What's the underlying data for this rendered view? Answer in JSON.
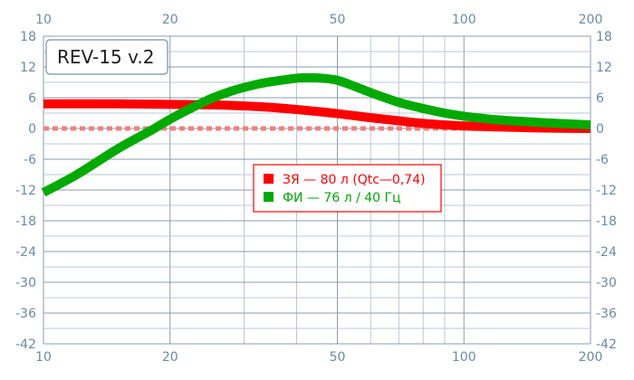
{
  "chart_data": {
    "type": "line",
    "title": "REV-15 v.2",
    "x_scale": "log",
    "xlim": [
      10,
      200
    ],
    "ylim": [
      -42,
      18
    ],
    "x_ticks": [
      10,
      20,
      50,
      100,
      200
    ],
    "y_ticks": [
      18,
      12,
      6,
      0,
      -6,
      -12,
      -18,
      -24,
      -30,
      -36,
      -42
    ],
    "x_minor_gridlines": [
      30,
      40,
      60,
      70,
      80,
      90
    ],
    "grid": true,
    "legend_position": "center",
    "reference_line": {
      "y": 0,
      "style": "dotted",
      "color": "#f08080"
    },
    "series": [
      {
        "name": "ЗЯ — 80 л (Qtc—0,74)",
        "color": "#ff0000",
        "x": [
          10,
          15,
          20,
          25,
          30,
          35,
          40,
          45,
          50,
          60,
          70,
          80,
          100,
          120,
          150,
          200
        ],
        "y": [
          4.8,
          4.8,
          4.7,
          4.6,
          4.4,
          4.1,
          3.7,
          3.3,
          2.9,
          2.1,
          1.5,
          1.0,
          0.5,
          0.3,
          0.1,
          0.0
        ]
      },
      {
        "name": "ФИ — 76 л / 40 Гц",
        "color": "#00aa00",
        "x": [
          10,
          12,
          15,
          18,
          20,
          22,
          25,
          28,
          30,
          33,
          36,
          40,
          43,
          46,
          50,
          55,
          60,
          70,
          80,
          90,
          100,
          120,
          150,
          200
        ],
        "y": [
          -12.5,
          -9.0,
          -4.0,
          -0.4,
          1.8,
          3.6,
          5.8,
          7.3,
          8.0,
          8.8,
          9.3,
          9.8,
          9.9,
          9.8,
          9.4,
          8.2,
          7.0,
          5.1,
          3.9,
          3.0,
          2.4,
          1.7,
          1.2,
          0.7
        ]
      }
    ]
  },
  "colors": {
    "axis_text": "#6b8aa6",
    "major_grid": "#8a9cb0",
    "minor_grid": "#b8c8d8",
    "legend_border": "#ff0000",
    "legend_text_red": "#ff0000",
    "legend_text_green": "#00aa00"
  }
}
